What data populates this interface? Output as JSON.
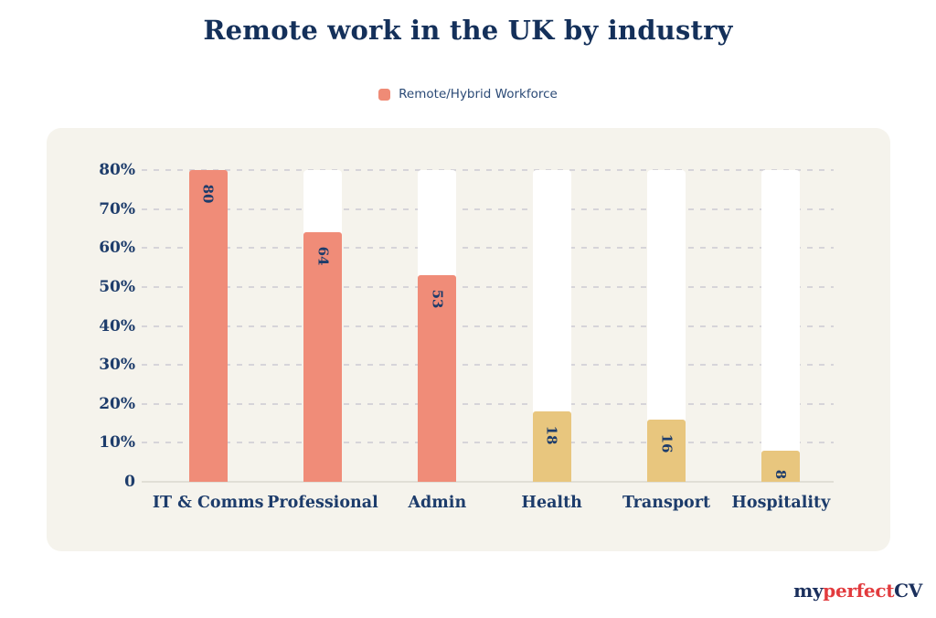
{
  "header": {
    "title": "Remote work in the UK by industry"
  },
  "legend": {
    "label": "Remote/Hybrid Workforce",
    "swatch_color": "#EF8B76"
  },
  "chart_data": {
    "type": "bar",
    "title": "Remote work in the UK by industry",
    "series_name": "Remote/Hybrid Workforce",
    "categories": [
      "IT & Comms",
      "Professional",
      "Admin",
      "Health",
      "Transport",
      "Hospitality"
    ],
    "values": [
      80,
      64,
      53,
      18,
      16,
      8
    ],
    "value_suffix": "%",
    "bar_colors": [
      "#F08C78",
      "#F08C78",
      "#F08C78",
      "#E8C67E",
      "#E8C67E",
      "#E8C67E"
    ],
    "y_ticks": [
      "80%",
      "70%",
      "60%",
      "50%",
      "40%",
      "30%",
      "20%",
      "10%",
      "0"
    ],
    "y_tick_values": [
      80,
      70,
      60,
      50,
      40,
      30,
      20,
      10,
      0
    ],
    "ylim": [
      0,
      80
    ],
    "grid": "horizontal-dashed",
    "legend_position": "top-center",
    "background_bars": {
      "visible": true,
      "max_value": 80,
      "color": "#FFFFFF"
    },
    "value_labels": {
      "rotated_90deg": true,
      "color": "#1D3C6B"
    }
  },
  "colors": {
    "title_navy": "#14305A",
    "axis_navy": "#1D3C6B",
    "panel_background": "#F5F3EC",
    "page_background": "#FFFFFF",
    "gridline": "#D6D4D9",
    "baseline": "#E0DED6"
  },
  "logo": {
    "part1": "my",
    "part2": "perfect",
    "part3": "CV",
    "part1_color": "#1A2F5C",
    "part2_color": "#E23B3E",
    "part3_color": "#1A2F5C"
  }
}
